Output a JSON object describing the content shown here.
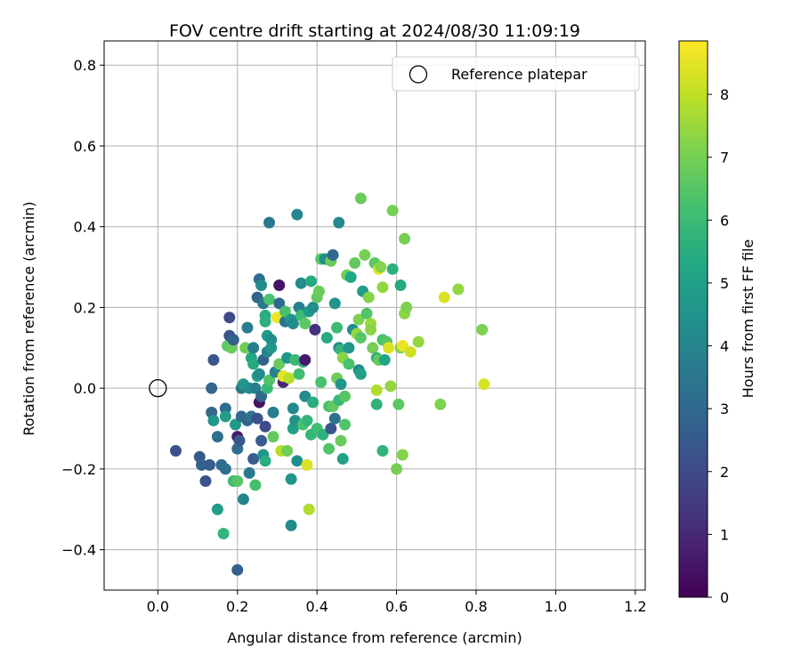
{
  "chart_data": {
    "type": "scatter",
    "title": "FOV centre drift starting at 2024/08/30 11:09:19",
    "xlabel": "Angular distance from reference (arcmin)",
    "ylabel": "Rotation from reference (arcmin)",
    "xlim": [
      -0.135,
      1.225
    ],
    "ylim": [
      -0.5,
      0.86
    ],
    "xticks": [
      "0.0",
      "0.2",
      "0.4",
      "0.6",
      "0.8",
      "1.0",
      "1.2"
    ],
    "yticks": [
      "−0.4",
      "−0.2",
      "0.0",
      "0.2",
      "0.4",
      "0.6",
      "0.8"
    ],
    "grid": true,
    "legend": {
      "label": "Reference platepar",
      "placement": "top-right"
    },
    "reference_point": {
      "x": 0.0,
      "y": 0.0
    },
    "colorbar": {
      "label": "Hours from first FF file",
      "min": 0,
      "max": 8.85,
      "ticks": [
        "0",
        "1",
        "2",
        "3",
        "4",
        "5",
        "6",
        "7",
        "8"
      ],
      "colormap": "viridis"
    },
    "points": [
      {
        "x": 0.045,
        "y": -0.155,
        "h": 2.2
      },
      {
        "x": 0.105,
        "y": -0.17,
        "h": 2.5
      },
      {
        "x": 0.11,
        "y": -0.19,
        "h": 2.8
      },
      {
        "x": 0.12,
        "y": -0.23,
        "h": 2.3
      },
      {
        "x": 0.13,
        "y": -0.19,
        "h": 2.6
      },
      {
        "x": 0.135,
        "y": -0.06,
        "h": 3.0
      },
      {
        "x": 0.135,
        "y": 0.0,
        "h": 2.9
      },
      {
        "x": 0.14,
        "y": 0.07,
        "h": 2.4
      },
      {
        "x": 0.14,
        "y": -0.08,
        "h": 4.6
      },
      {
        "x": 0.15,
        "y": -0.12,
        "h": 3.3
      },
      {
        "x": 0.15,
        "y": -0.3,
        "h": 4.9
      },
      {
        "x": 0.16,
        "y": -0.19,
        "h": 3.0
      },
      {
        "x": 0.165,
        "y": -0.36,
        "h": 5.8
      },
      {
        "x": 0.17,
        "y": -0.2,
        "h": 3.2
      },
      {
        "x": 0.17,
        "y": -0.05,
        "h": 3.1
      },
      {
        "x": 0.17,
        "y": -0.07,
        "h": 4.9
      },
      {
        "x": 0.175,
        "y": 0.105,
        "h": 6.6
      },
      {
        "x": 0.18,
        "y": 0.175,
        "h": 2.0
      },
      {
        "x": 0.18,
        "y": 0.13,
        "h": 2.3
      },
      {
        "x": 0.185,
        "y": 0.1,
        "h": 6.8
      },
      {
        "x": 0.19,
        "y": -0.23,
        "h": 6.0
      },
      {
        "x": 0.19,
        "y": 0.12,
        "h": 2.7
      },
      {
        "x": 0.195,
        "y": -0.09,
        "h": 4.8
      },
      {
        "x": 0.2,
        "y": -0.12,
        "h": 0.6
      },
      {
        "x": 0.2,
        "y": -0.45,
        "h": 2.7
      },
      {
        "x": 0.2,
        "y": -0.23,
        "h": 6.5
      },
      {
        "x": 0.2,
        "y": -0.15,
        "h": 3.1
      },
      {
        "x": 0.205,
        "y": -0.13,
        "h": 2.5
      },
      {
        "x": 0.21,
        "y": -0.07,
        "h": 3.0
      },
      {
        "x": 0.21,
        "y": 0.0,
        "h": 3.5
      },
      {
        "x": 0.215,
        "y": 0.01,
        "h": 4.6
      },
      {
        "x": 0.215,
        "y": -0.275,
        "h": 4.0
      },
      {
        "x": 0.22,
        "y": 0.1,
        "h": 6.9
      },
      {
        "x": 0.225,
        "y": 0.15,
        "h": 3.7
      },
      {
        "x": 0.225,
        "y": -0.08,
        "h": 3.0
      },
      {
        "x": 0.23,
        "y": -0.21,
        "h": 3.5
      },
      {
        "x": 0.23,
        "y": 0.0,
        "h": 4.4
      },
      {
        "x": 0.235,
        "y": 0.075,
        "h": 5.3
      },
      {
        "x": 0.235,
        "y": -0.07,
        "h": 3.4
      },
      {
        "x": 0.24,
        "y": 0.06,
        "h": 5.4
      },
      {
        "x": 0.24,
        "y": -0.175,
        "h": 2.6
      },
      {
        "x": 0.24,
        "y": 0.1,
        "h": 3.8
      },
      {
        "x": 0.245,
        "y": -0.24,
        "h": 6.2
      },
      {
        "x": 0.245,
        "y": 0.0,
        "h": 3.8
      },
      {
        "x": 0.25,
        "y": 0.03,
        "h": 5.0
      },
      {
        "x": 0.25,
        "y": -0.075,
        "h": 2.2
      },
      {
        "x": 0.25,
        "y": 0.225,
        "h": 2.9
      },
      {
        "x": 0.255,
        "y": -0.035,
        "h": 0.4
      },
      {
        "x": 0.255,
        "y": 0.27,
        "h": 3.2
      },
      {
        "x": 0.255,
        "y": 0.035,
        "h": 4.3
      },
      {
        "x": 0.26,
        "y": 0.255,
        "h": 4.3
      },
      {
        "x": 0.26,
        "y": -0.02,
        "h": 3.0
      },
      {
        "x": 0.26,
        "y": -0.13,
        "h": 2.6
      },
      {
        "x": 0.265,
        "y": -0.165,
        "h": 4.6
      },
      {
        "x": 0.265,
        "y": 0.21,
        "h": 3.6
      },
      {
        "x": 0.265,
        "y": 0.07,
        "h": 2.8
      },
      {
        "x": 0.27,
        "y": 0.18,
        "h": 5.5
      },
      {
        "x": 0.27,
        "y": 0.165,
        "h": 5.6
      },
      {
        "x": 0.27,
        "y": -0.095,
        "h": 2.0
      },
      {
        "x": 0.27,
        "y": -0.18,
        "h": 5.5
      },
      {
        "x": 0.275,
        "y": 0.13,
        "h": 4.8
      },
      {
        "x": 0.275,
        "y": 0.09,
        "h": 4.0
      },
      {
        "x": 0.275,
        "y": 0.0,
        "h": 5.9
      },
      {
        "x": 0.28,
        "y": 0.41,
        "h": 3.5
      },
      {
        "x": 0.28,
        "y": 0.22,
        "h": 6.3
      },
      {
        "x": 0.28,
        "y": 0.02,
        "h": 6.4
      },
      {
        "x": 0.285,
        "y": 0.12,
        "h": 4.3
      },
      {
        "x": 0.285,
        "y": 0.1,
        "h": 4.6
      },
      {
        "x": 0.29,
        "y": -0.06,
        "h": 3.7
      },
      {
        "x": 0.29,
        "y": -0.12,
        "h": 6.7
      },
      {
        "x": 0.295,
        "y": 0.04,
        "h": 3.9
      },
      {
        "x": 0.3,
        "y": 0.175,
        "h": 8.6
      },
      {
        "x": 0.305,
        "y": 0.255,
        "h": 0.5
      },
      {
        "x": 0.305,
        "y": 0.06,
        "h": 6.8
      },
      {
        "x": 0.305,
        "y": 0.21,
        "h": 3.0
      },
      {
        "x": 0.31,
        "y": -0.155,
        "h": 7.9
      },
      {
        "x": 0.315,
        "y": 0.015,
        "h": 1.0
      },
      {
        "x": 0.315,
        "y": 0.03,
        "h": 8.5
      },
      {
        "x": 0.32,
        "y": 0.165,
        "h": 3.4
      },
      {
        "x": 0.32,
        "y": 0.19,
        "h": 6.3
      },
      {
        "x": 0.325,
        "y": 0.075,
        "h": 4.6
      },
      {
        "x": 0.325,
        "y": -0.155,
        "h": 6.9
      },
      {
        "x": 0.33,
        "y": 0.025,
        "h": 7.9
      },
      {
        "x": 0.335,
        "y": 0.17,
        "h": 4.7
      },
      {
        "x": 0.335,
        "y": -0.225,
        "h": 4.6
      },
      {
        "x": 0.335,
        "y": -0.34,
        "h": 4.2
      },
      {
        "x": 0.34,
        "y": -0.1,
        "h": 5.0
      },
      {
        "x": 0.34,
        "y": -0.05,
        "h": 4.1
      },
      {
        "x": 0.34,
        "y": 0.16,
        "h": 4.3
      },
      {
        "x": 0.345,
        "y": 0.07,
        "h": 6.0
      },
      {
        "x": 0.345,
        "y": -0.08,
        "h": 4.5
      },
      {
        "x": 0.35,
        "y": 0.43,
        "h": 4.0
      },
      {
        "x": 0.35,
        "y": -0.18,
        "h": 4.4
      },
      {
        "x": 0.355,
        "y": 0.2,
        "h": 3.8
      },
      {
        "x": 0.355,
        "y": 0.035,
        "h": 6.1
      },
      {
        "x": 0.36,
        "y": 0.26,
        "h": 4.2
      },
      {
        "x": 0.36,
        "y": 0.18,
        "h": 6.0
      },
      {
        "x": 0.365,
        "y": -0.09,
        "h": 6.3
      },
      {
        "x": 0.365,
        "y": 0.065,
        "h": 5.7
      },
      {
        "x": 0.37,
        "y": 0.16,
        "h": 6.6
      },
      {
        "x": 0.37,
        "y": -0.02,
        "h": 4.3
      },
      {
        "x": 0.37,
        "y": 0.07,
        "h": 0.6
      },
      {
        "x": 0.375,
        "y": -0.08,
        "h": 5.8
      },
      {
        "x": 0.375,
        "y": -0.19,
        "h": 8.4
      },
      {
        "x": 0.38,
        "y": 0.19,
        "h": 4.8
      },
      {
        "x": 0.38,
        "y": -0.3,
        "h": 7.8
      },
      {
        "x": 0.385,
        "y": 0.265,
        "h": 5.4
      },
      {
        "x": 0.385,
        "y": -0.115,
        "h": 5.8
      },
      {
        "x": 0.39,
        "y": 0.2,
        "h": 4.3
      },
      {
        "x": 0.39,
        "y": -0.035,
        "h": 5.5
      },
      {
        "x": 0.395,
        "y": 0.145,
        "h": 1.3
      },
      {
        "x": 0.4,
        "y": 0.225,
        "h": 6.7
      },
      {
        "x": 0.4,
        "y": -0.1,
        "h": 6.1
      },
      {
        "x": 0.405,
        "y": 0.24,
        "h": 6.8
      },
      {
        "x": 0.41,
        "y": 0.32,
        "h": 6.5
      },
      {
        "x": 0.41,
        "y": 0.015,
        "h": 6.3
      },
      {
        "x": 0.415,
        "y": -0.115,
        "h": 5.6
      },
      {
        "x": 0.42,
        "y": 0.32,
        "h": 4.4
      },
      {
        "x": 0.425,
        "y": 0.125,
        "h": 5.4
      },
      {
        "x": 0.43,
        "y": -0.045,
        "h": 6.2
      },
      {
        "x": 0.43,
        "y": -0.15,
        "h": 6.4
      },
      {
        "x": 0.435,
        "y": 0.315,
        "h": 6.8
      },
      {
        "x": 0.435,
        "y": -0.1,
        "h": 2.3
      },
      {
        "x": 0.44,
        "y": 0.33,
        "h": 3.0
      },
      {
        "x": 0.44,
        "y": -0.045,
        "h": 6.7
      },
      {
        "x": 0.445,
        "y": 0.21,
        "h": 4.5
      },
      {
        "x": 0.445,
        "y": -0.075,
        "h": 3.3
      },
      {
        "x": 0.45,
        "y": 0.15,
        "h": 6.0
      },
      {
        "x": 0.45,
        "y": 0.025,
        "h": 6.9
      },
      {
        "x": 0.455,
        "y": 0.1,
        "h": 4.2
      },
      {
        "x": 0.455,
        "y": 0.41,
        "h": 4.1
      },
      {
        "x": 0.455,
        "y": -0.03,
        "h": 5.9
      },
      {
        "x": 0.46,
        "y": 0.095,
        "h": 5.8
      },
      {
        "x": 0.46,
        "y": -0.13,
        "h": 6.8
      },
      {
        "x": 0.46,
        "y": 0.01,
        "h": 4.6
      },
      {
        "x": 0.465,
        "y": -0.175,
        "h": 5.0
      },
      {
        "x": 0.465,
        "y": 0.075,
        "h": 7.3
      },
      {
        "x": 0.47,
        "y": -0.02,
        "h": 6.5
      },
      {
        "x": 0.47,
        "y": -0.09,
        "h": 6.4
      },
      {
        "x": 0.475,
        "y": 0.28,
        "h": 6.9
      },
      {
        "x": 0.48,
        "y": 0.06,
        "h": 6.3
      },
      {
        "x": 0.48,
        "y": 0.1,
        "h": 4.7
      },
      {
        "x": 0.485,
        "y": 0.275,
        "h": 5.3
      },
      {
        "x": 0.49,
        "y": 0.145,
        "h": 4.3
      },
      {
        "x": 0.495,
        "y": 0.31,
        "h": 6.7
      },
      {
        "x": 0.5,
        "y": 0.135,
        "h": 7.4
      },
      {
        "x": 0.505,
        "y": 0.045,
        "h": 4.2
      },
      {
        "x": 0.505,
        "y": 0.17,
        "h": 7.1
      },
      {
        "x": 0.51,
        "y": 0.47,
        "h": 6.8
      },
      {
        "x": 0.51,
        "y": 0.035,
        "h": 5.0
      },
      {
        "x": 0.51,
        "y": 0.125,
        "h": 6.5
      },
      {
        "x": 0.515,
        "y": 0.24,
        "h": 4.9
      },
      {
        "x": 0.52,
        "y": 0.33,
        "h": 7.0
      },
      {
        "x": 0.525,
        "y": 0.185,
        "h": 6.4
      },
      {
        "x": 0.53,
        "y": 0.225,
        "h": 7.2
      },
      {
        "x": 0.535,
        "y": 0.16,
        "h": 7.5
      },
      {
        "x": 0.535,
        "y": 0.145,
        "h": 7.3
      },
      {
        "x": 0.54,
        "y": 0.1,
        "h": 7.0
      },
      {
        "x": 0.545,
        "y": 0.31,
        "h": 6.6
      },
      {
        "x": 0.55,
        "y": 0.075,
        "h": 5.6
      },
      {
        "x": 0.55,
        "y": -0.04,
        "h": 5.7
      },
      {
        "x": 0.55,
        "y": -0.005,
        "h": 7.8
      },
      {
        "x": 0.555,
        "y": 0.07,
        "h": 6.7
      },
      {
        "x": 0.555,
        "y": 0.295,
        "h": 8.5
      },
      {
        "x": 0.56,
        "y": 0.3,
        "h": 7.2
      },
      {
        "x": 0.565,
        "y": 0.25,
        "h": 7.4
      },
      {
        "x": 0.565,
        "y": 0.12,
        "h": 6.3
      },
      {
        "x": 0.565,
        "y": -0.155,
        "h": 5.7
      },
      {
        "x": 0.57,
        "y": 0.07,
        "h": 5.2
      },
      {
        "x": 0.575,
        "y": 0.115,
        "h": 6.5
      },
      {
        "x": 0.58,
        "y": 0.1,
        "h": 8.4
      },
      {
        "x": 0.585,
        "y": 0.005,
        "h": 7.4
      },
      {
        "x": 0.59,
        "y": 0.44,
        "h": 7.0
      },
      {
        "x": 0.59,
        "y": 0.295,
        "h": 5.6
      },
      {
        "x": 0.6,
        "y": -0.2,
        "h": 7.0
      },
      {
        "x": 0.605,
        "y": -0.04,
        "h": 6.6
      },
      {
        "x": 0.61,
        "y": 0.255,
        "h": 5.4
      },
      {
        "x": 0.61,
        "y": 0.1,
        "h": 7.1
      },
      {
        "x": 0.615,
        "y": 0.105,
        "h": 8.6
      },
      {
        "x": 0.615,
        "y": -0.165,
        "h": 7.2
      },
      {
        "x": 0.62,
        "y": 0.37,
        "h": 7.0
      },
      {
        "x": 0.62,
        "y": 0.185,
        "h": 7.3
      },
      {
        "x": 0.625,
        "y": 0.2,
        "h": 7.1
      },
      {
        "x": 0.635,
        "y": 0.09,
        "h": 8.2
      },
      {
        "x": 0.655,
        "y": 0.115,
        "h": 7.4
      },
      {
        "x": 0.71,
        "y": -0.04,
        "h": 7.1
      },
      {
        "x": 0.72,
        "y": 0.225,
        "h": 8.4
      },
      {
        "x": 0.755,
        "y": 0.245,
        "h": 7.4
      },
      {
        "x": 0.815,
        "y": 0.145,
        "h": 7.1
      },
      {
        "x": 0.82,
        "y": 0.01,
        "h": 8.3
      }
    ]
  }
}
